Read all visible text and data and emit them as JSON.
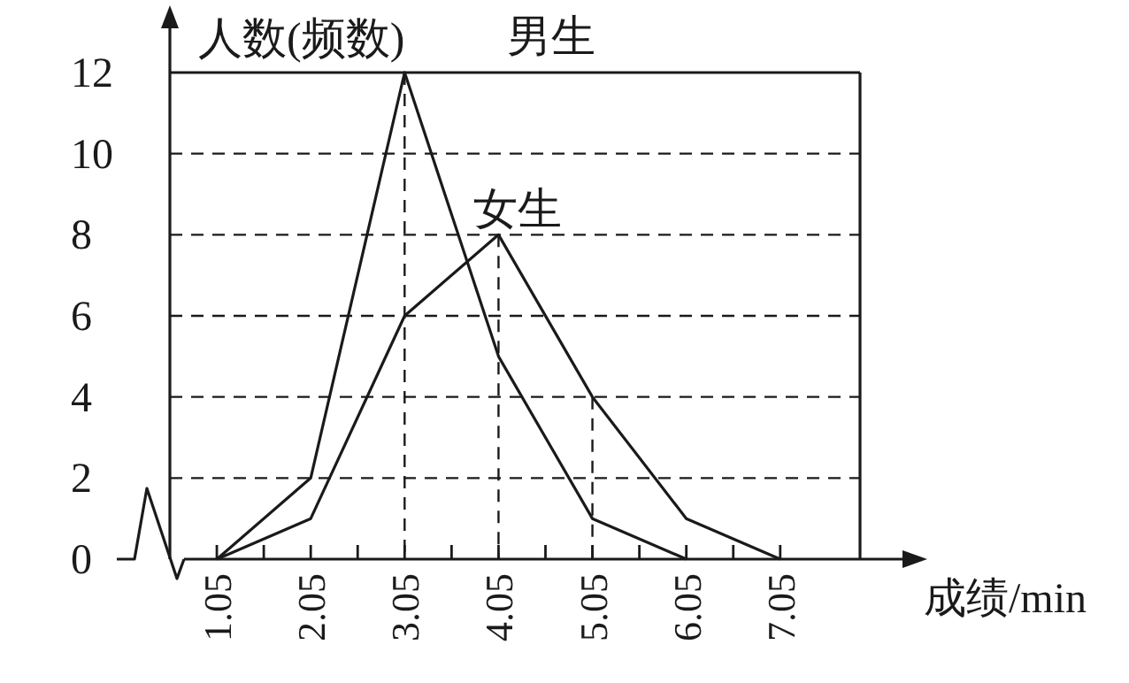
{
  "chart_data": {
    "type": "line",
    "ylabel": "人数(频数)",
    "xlabel": "成绩/min",
    "x": [
      1.05,
      2.05,
      3.05,
      4.05,
      5.05,
      6.05,
      7.05
    ],
    "series": [
      {
        "name": "男生",
        "color": "#1a1a1a",
        "values": [
          0,
          2,
          12,
          5,
          1,
          0,
          null
        ]
      },
      {
        "name": "女生",
        "color": "#1a1a1a",
        "values": [
          0,
          1,
          6,
          8,
          4,
          1,
          0
        ]
      }
    ],
    "xlim": [
      0.55,
      7.9
    ],
    "xticks": [
      1.05,
      {
        "value": 1.55,
        "label": null
      },
      2.05,
      {
        "value": 2.55,
        "label": null
      },
      3.05,
      {
        "value": 3.55,
        "label": null
      },
      4.05,
      {
        "value": 4.55,
        "label": null
      },
      5.05,
      {
        "value": 5.55,
        "label": null
      },
      6.05,
      {
        "value": 6.55,
        "label": null
      },
      7.05
    ],
    "ylim": [
      0,
      12
    ],
    "yticks": [
      0,
      2,
      4,
      6,
      8,
      10,
      12
    ],
    "grid": "y",
    "marker": "none",
    "line_style": "solid",
    "ref_lines": [
      {
        "axis": "x",
        "value": 3.05,
        "line_style": "dashed"
      },
      {
        "axis": "x",
        "value": 4.05,
        "line_style": "dashed"
      },
      {
        "axis": "x",
        "value": 5.05,
        "line_style": "dashed"
      }
    ]
  }
}
